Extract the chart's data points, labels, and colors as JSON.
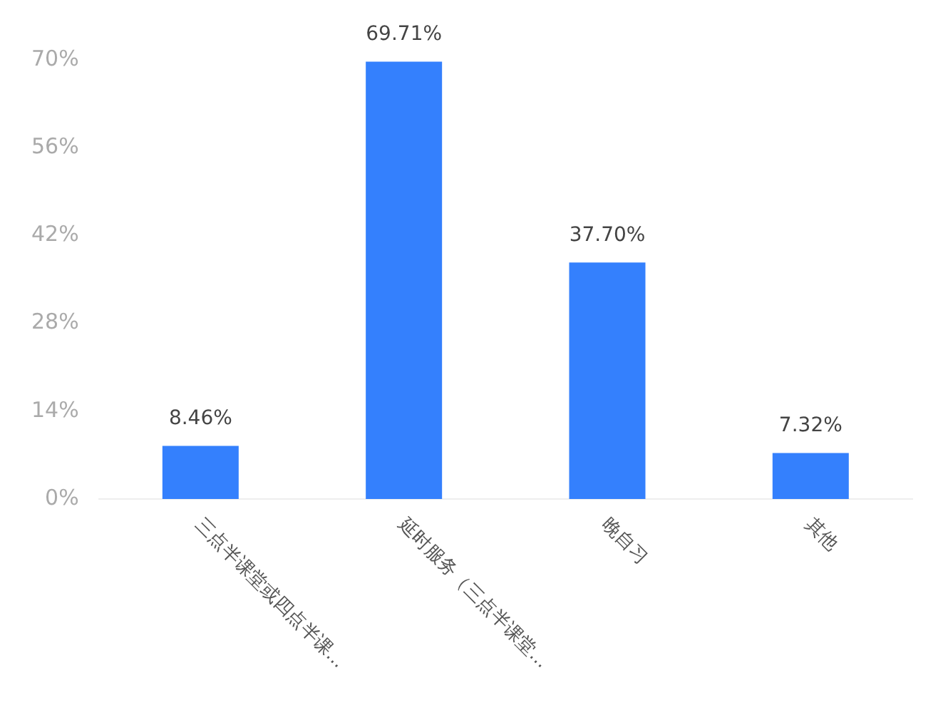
{
  "chart_data": {
    "type": "bar",
    "categories": [
      "三点半课堂或四点半课...",
      "延时服务（三点半课堂...",
      "晚自习",
      "其他"
    ],
    "values": [
      8.46,
      69.71,
      37.7,
      7.32
    ],
    "value_labels": [
      "8.46%",
      "69.71%",
      "37.70%",
      "7.32%"
    ],
    "color": "#3480fd",
    "ylim": [
      0,
      70
    ],
    "yticks": [
      {
        "value": 0,
        "label": "0%"
      },
      {
        "value": 14,
        "label": "14%"
      },
      {
        "value": 28,
        "label": "28%"
      },
      {
        "value": 42,
        "label": "42%"
      },
      {
        "value": 56,
        "label": "56%"
      },
      {
        "value": 70,
        "label": "70%"
      }
    ],
    "grid": false,
    "legend": false
  }
}
